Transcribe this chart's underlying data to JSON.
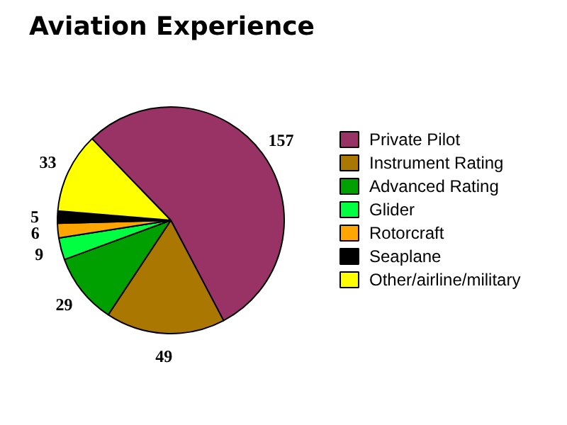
{
  "chart_data": {
    "type": "pie",
    "title": "Aviation Experience",
    "categories": [
      "Private Pilot",
      "Instrument Rating",
      "Advanced Rating",
      "Glider",
      "Rotorcraft",
      "Seaplane",
      "Other/airline/military"
    ],
    "values": [
      157,
      49,
      29,
      9,
      6,
      5,
      33
    ],
    "colors": [
      "#993366",
      "#aa7700",
      "#00a000",
      "#00ff40",
      "#ffa500",
      "#000000",
      "#ffff00"
    ],
    "data_labels": true,
    "legend": "right"
  }
}
